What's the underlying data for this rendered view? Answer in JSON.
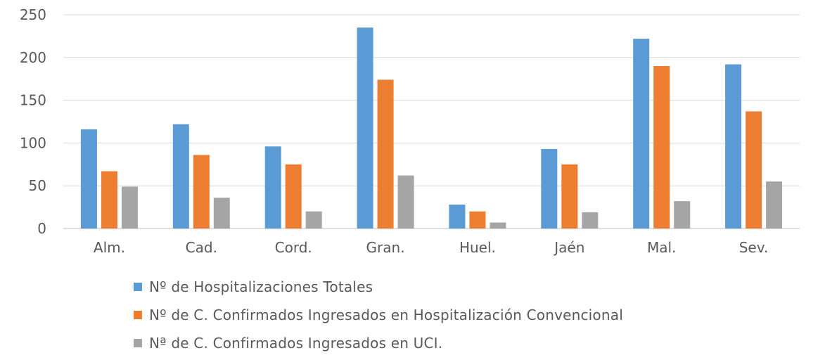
{
  "chart_data": {
    "type": "bar",
    "title": "",
    "xlabel": "",
    "ylabel": "",
    "ylim": [
      0,
      250
    ],
    "yticks": [
      0,
      50,
      100,
      150,
      200,
      250
    ],
    "grid": true,
    "legend_position": "bottom-left",
    "categories": [
      "Alm.",
      "Cad.",
      "Cord.",
      "Gran.",
      "Huel.",
      "Jaén",
      "Mal.",
      "Sev."
    ],
    "series": [
      {
        "name": "Nº de Hospitalizaciones Totales",
        "color": "#5B9BD5",
        "values": [
          116,
          122,
          96,
          235,
          28,
          93,
          222,
          192
        ]
      },
      {
        "name": "Nº de C. Confirmados Ingresados en Hospitalización Convencional",
        "color": "#ED7D31",
        "values": [
          67,
          86,
          75,
          174,
          20,
          75,
          190,
          137
        ]
      },
      {
        "name": "Nª de C. Confirmados Ingresados en UCI.",
        "color": "#A5A5A5",
        "values": [
          49,
          36,
          20,
          62,
          7,
          19,
          32,
          55
        ]
      }
    ]
  }
}
